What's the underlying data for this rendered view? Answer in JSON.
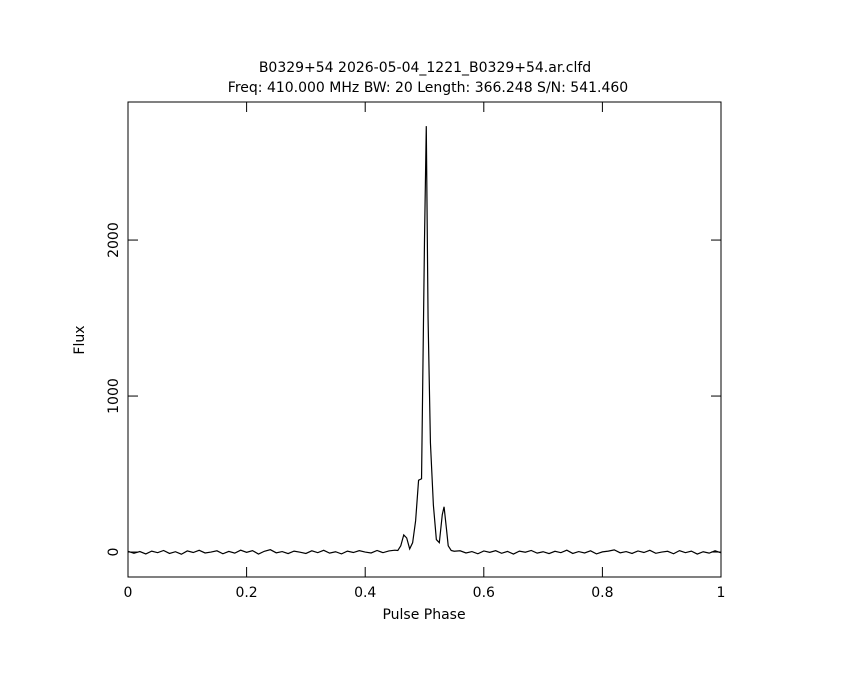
{
  "chart_data": {
    "type": "line",
    "title": "B0329+54 2026-05-04_1221_B0329+54.ar.clfd",
    "subtitle": "Freq: 410.000 MHz BW: 20 Length: 366.248 S/N: 541.460",
    "x_label": "Pulse Phase",
    "y_label": "Flux",
    "x": [
      0,
      0.01,
      0.02,
      0.03,
      0.04,
      0.05,
      0.06,
      0.07,
      0.08,
      0.09,
      0.1,
      0.11,
      0.12,
      0.13,
      0.14,
      0.15,
      0.16,
      0.17,
      0.18,
      0.19,
      0.2,
      0.21,
      0.22,
      0.23,
      0.24,
      0.25,
      0.26,
      0.27,
      0.28,
      0.29,
      0.3,
      0.31,
      0.32,
      0.33,
      0.34,
      0.35,
      0.36,
      0.37,
      0.38,
      0.39,
      0.4,
      0.41,
      0.42,
      0.43,
      0.44,
      0.45,
      0.455,
      0.46,
      0.465,
      0.47,
      0.475,
      0.48,
      0.485,
      0.49,
      0.495,
      0.5,
      0.503,
      0.506,
      0.51,
      0.515,
      0.52,
      0.525,
      0.53,
      0.533,
      0.537,
      0.54,
      0.545,
      0.55,
      0.56,
      0.57,
      0.58,
      0.59,
      0.6,
      0.61,
      0.62,
      0.63,
      0.64,
      0.65,
      0.66,
      0.67,
      0.68,
      0.69,
      0.7,
      0.71,
      0.72,
      0.73,
      0.74,
      0.75,
      0.76,
      0.77,
      0.78,
      0.79,
      0.8,
      0.81,
      0.82,
      0.83,
      0.84,
      0.85,
      0.86,
      0.87,
      0.88,
      0.89,
      0.9,
      0.91,
      0.92,
      0.93,
      0.94,
      0.95,
      0.96,
      0.97,
      0.98,
      0.99,
      1
    ],
    "series": [
      {
        "name": "Flux",
        "color": "#000000",
        "values": [
          5,
          -8,
          3,
          -12,
          6,
          -4,
          10,
          -9,
          2,
          -14,
          7,
          -3,
          11,
          -6,
          0,
          8,
          -11,
          4,
          -7,
          12,
          -2,
          9,
          -13,
          5,
          15,
          -5,
          3,
          -10,
          6,
          -1,
          -9,
          8,
          -4,
          11,
          -7,
          2,
          -12,
          6,
          -3,
          9,
          0,
          -6,
          10,
          -4,
          7,
          12,
          10,
          40,
          110,
          90,
          20,
          60,
          200,
          460,
          470,
          2000,
          2730,
          1500,
          700,
          300,
          80,
          60,
          240,
          290,
          150,
          40,
          10,
          5,
          8,
          -6,
          3,
          -11,
          7,
          -2,
          9,
          -8,
          4,
          -13,
          6,
          -1,
          10,
          -7,
          2,
          -10,
          5,
          -4,
          12,
          -9,
          3,
          -6,
          8,
          -12,
          1,
          6,
          14,
          -5,
          3,
          -9,
          7,
          -3,
          11,
          -8,
          0,
          5,
          -11,
          9,
          -4,
          6,
          -13,
          2,
          -7,
          8,
          -5
        ]
      }
    ],
    "xlim": [
      0,
      1
    ],
    "ylim": [
      -160,
      2885
    ],
    "xticks": [
      0,
      0.2,
      0.4,
      0.6,
      0.8,
      1
    ],
    "yticks": [
      0,
      1000,
      2000
    ]
  }
}
